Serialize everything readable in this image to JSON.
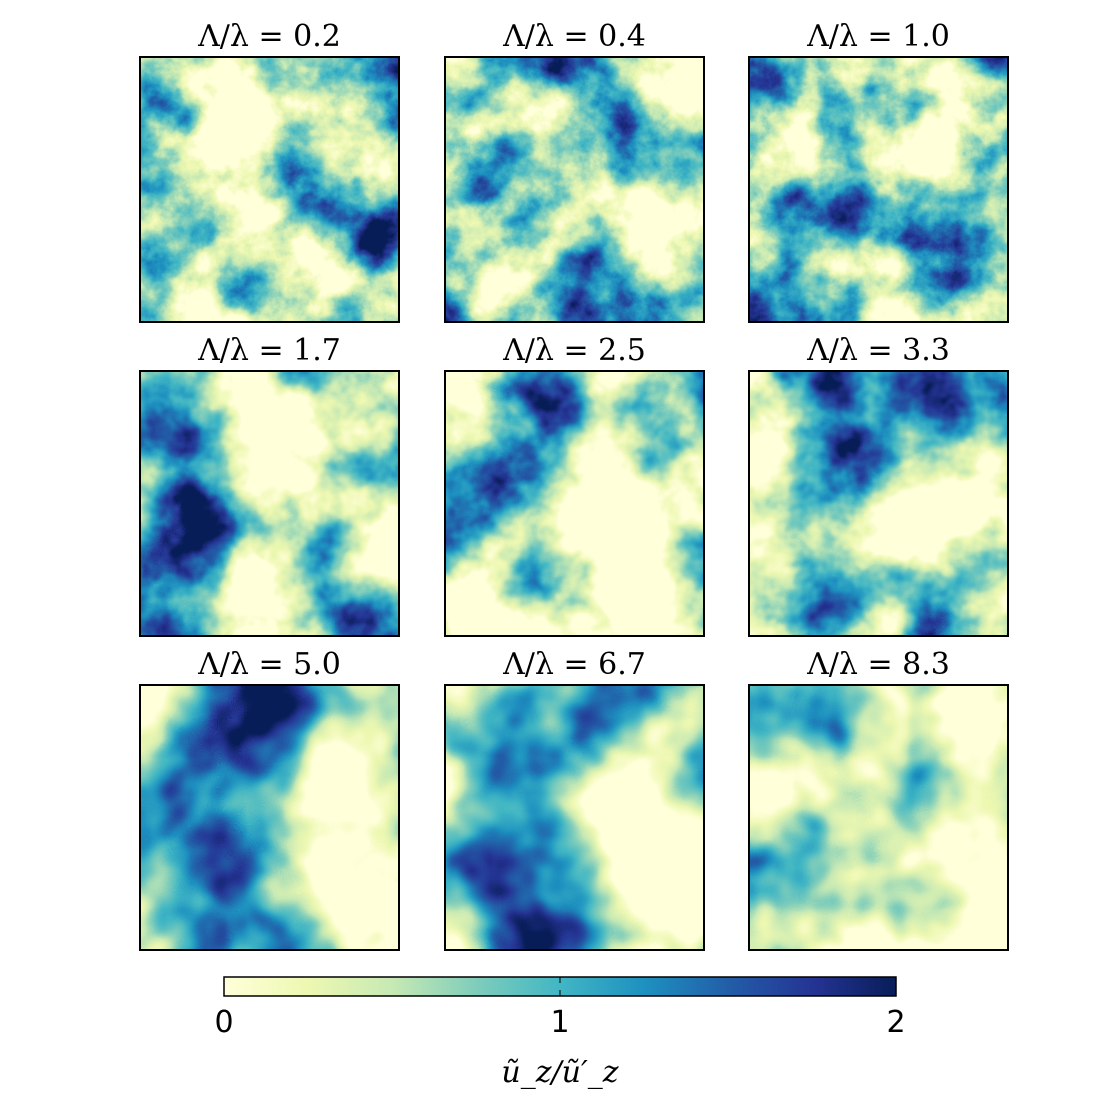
{
  "chart_data": {
    "type": "heatmap",
    "colormap": "YlGnBu",
    "colors": [
      "#ffffd9",
      "#edf8b1",
      "#c7e9b4",
      "#7fcdbb",
      "#41b6c4",
      "#1d91c0",
      "#225ea8",
      "#253494",
      "#081d58"
    ],
    "panels": [
      {
        "title": "Λ/λ = 0.2"
      },
      {
        "title": "Λ/λ = 0.4"
      },
      {
        "title": "Λ/λ = 1.0"
      },
      {
        "title": "Λ/λ = 1.7"
      },
      {
        "title": "Λ/λ = 2.5"
      },
      {
        "title": "Λ/λ = 3.3"
      },
      {
        "title": "Λ/λ = 5.0"
      },
      {
        "title": "Λ/λ = 6.7"
      },
      {
        "title": "Λ/λ = 8.3"
      }
    ],
    "colorbar": {
      "range": [
        0,
        2
      ],
      "ticks": [
        0,
        1,
        2
      ],
      "tick_labels": [
        "0",
        "1",
        "2"
      ],
      "label": "ũ_z/ũ′_z",
      "orientation": "horizontal"
    }
  }
}
